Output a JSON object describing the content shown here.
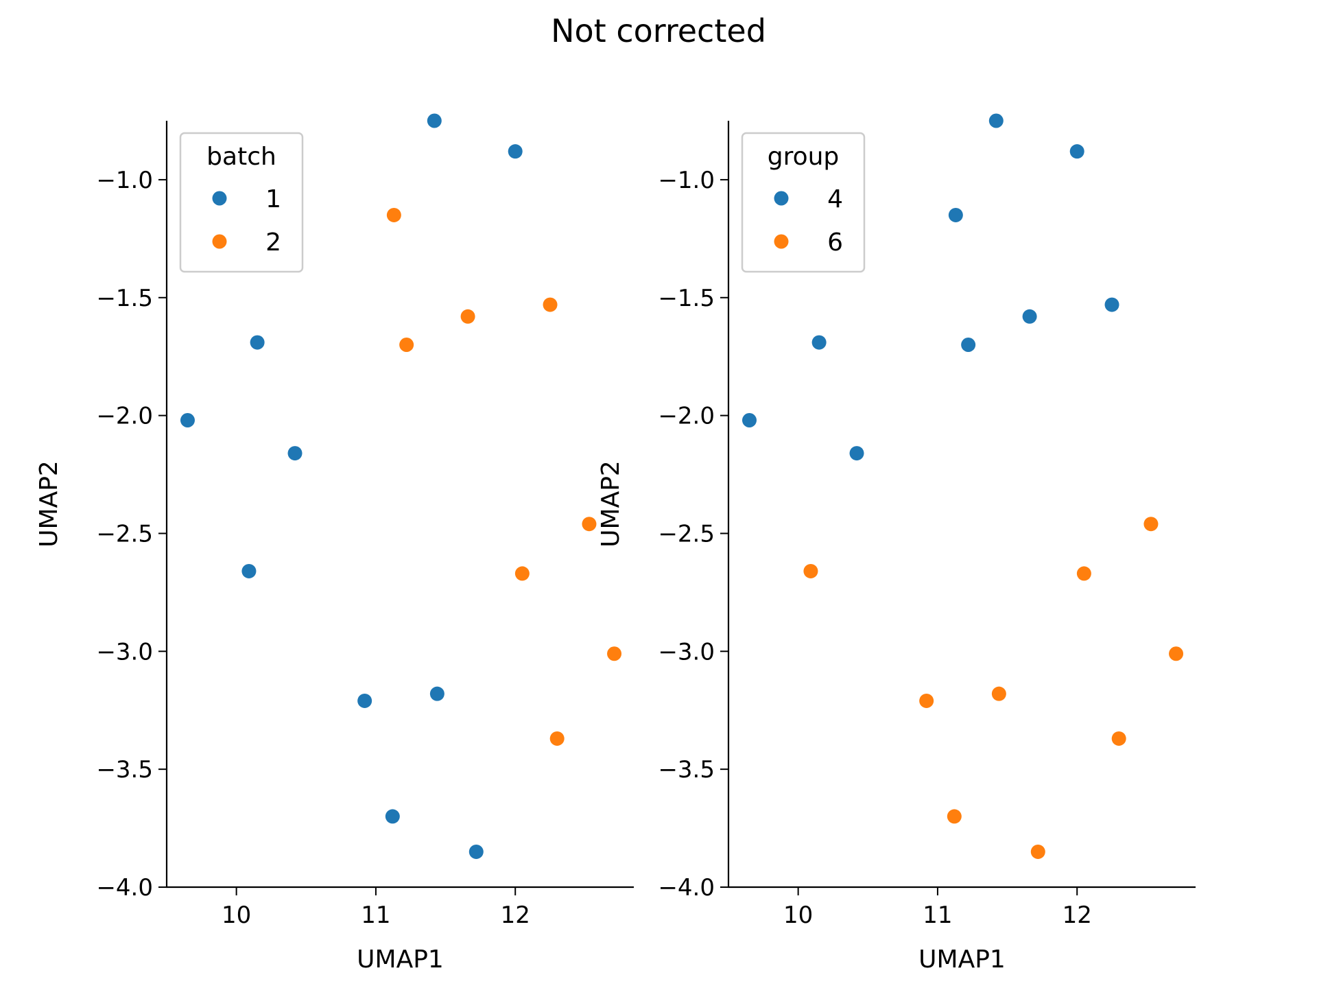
{
  "figure": {
    "title": "Not corrected"
  },
  "colors": {
    "blue": "#1f77b4",
    "orange": "#ff7f0e"
  },
  "chart_data": [
    {
      "type": "scatter",
      "title": "",
      "xlabel": "UMAP1",
      "ylabel": "UMAP2",
      "xlim": [
        9.5,
        12.85
      ],
      "ylim": [
        -4.0,
        -0.75
      ],
      "xticks": [
        10,
        11,
        12
      ],
      "xtick_labels": [
        "10",
        "11",
        "12"
      ],
      "yticks": [
        -1.0,
        -1.5,
        -2.0,
        -2.5,
        -3.0,
        -3.5,
        -4.0
      ],
      "ytick_labels": [
        "−1.0",
        "−1.5",
        "−2.0",
        "−2.5",
        "−3.0",
        "−3.5",
        "−4.0"
      ],
      "grid": false,
      "legend": {
        "title": "batch",
        "position": "top-left",
        "entries": [
          "1",
          "2"
        ]
      },
      "series": [
        {
          "name": "1",
          "color": "#1f77b4",
          "points": [
            [
              11.42,
              -0.75
            ],
            [
              12.0,
              -0.88
            ],
            [
              10.15,
              -1.69
            ],
            [
              9.65,
              -2.02
            ],
            [
              10.42,
              -2.16
            ],
            [
              10.09,
              -2.66
            ],
            [
              10.92,
              -3.21
            ],
            [
              11.44,
              -3.18
            ],
            [
              11.12,
              -3.7
            ],
            [
              11.72,
              -3.85
            ]
          ]
        },
        {
          "name": "2",
          "color": "#ff7f0e",
          "points": [
            [
              11.13,
              -1.15
            ],
            [
              12.25,
              -1.53
            ],
            [
              11.66,
              -1.58
            ],
            [
              11.22,
              -1.7
            ],
            [
              12.53,
              -2.46
            ],
            [
              12.05,
              -2.67
            ],
            [
              12.71,
              -3.01
            ],
            [
              12.3,
              -3.37
            ]
          ]
        }
      ]
    },
    {
      "type": "scatter",
      "title": "",
      "xlabel": "UMAP1",
      "ylabel": "UMAP2",
      "xlim": [
        9.5,
        12.85
      ],
      "ylim": [
        -4.0,
        -0.75
      ],
      "xticks": [
        10,
        11,
        12
      ],
      "xtick_labels": [
        "10",
        "11",
        "12"
      ],
      "yticks": [
        -1.0,
        -1.5,
        -2.0,
        -2.5,
        -3.0,
        -3.5,
        -4.0
      ],
      "ytick_labels": [
        "−1.0",
        "−1.5",
        "−2.0",
        "−2.5",
        "−3.0",
        "−3.5",
        "−4.0"
      ],
      "grid": false,
      "legend": {
        "title": "group",
        "position": "top-left",
        "entries": [
          "4",
          "6"
        ]
      },
      "series": [
        {
          "name": "4",
          "color": "#1f77b4",
          "points": [
            [
              11.42,
              -0.75
            ],
            [
              12.0,
              -0.88
            ],
            [
              11.13,
              -1.15
            ],
            [
              12.25,
              -1.53
            ],
            [
              11.66,
              -1.58
            ],
            [
              11.22,
              -1.7
            ],
            [
              10.15,
              -1.69
            ],
            [
              9.65,
              -2.02
            ],
            [
              10.42,
              -2.16
            ]
          ]
        },
        {
          "name": "6",
          "color": "#ff7f0e",
          "points": [
            [
              12.53,
              -2.46
            ],
            [
              10.09,
              -2.66
            ],
            [
              12.05,
              -2.67
            ],
            [
              12.71,
              -3.01
            ],
            [
              10.92,
              -3.21
            ],
            [
              11.44,
              -3.18
            ],
            [
              12.3,
              -3.37
            ],
            [
              11.12,
              -3.7
            ],
            [
              11.72,
              -3.85
            ]
          ]
        }
      ]
    }
  ]
}
